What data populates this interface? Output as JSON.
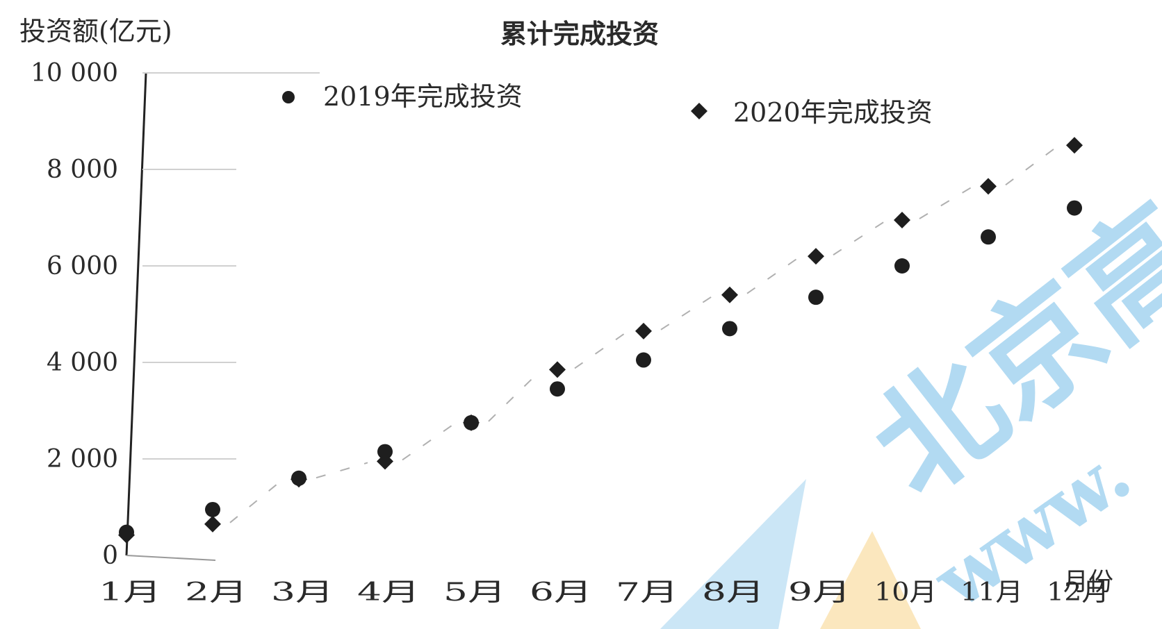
{
  "chart_data": {
    "type": "scatter",
    "title": "累计完成投资",
    "ylabel": "投资额(亿元)",
    "xlabel": "月份",
    "categories": [
      "1月",
      "2月",
      "3月",
      "4月",
      "5月",
      "6月",
      "7月",
      "8月",
      "9月",
      "10月",
      "11月",
      "12月"
    ],
    "yticks": [
      "0",
      "2 000",
      "4 000",
      "6 000",
      "8 000",
      "10 000"
    ],
    "ylim": [
      0,
      10000
    ],
    "legend_position": "top",
    "series": [
      {
        "name": "2019年完成投资",
        "marker": "circle",
        "color": "#1e1e1e",
        "values": [
          480,
          950,
          1600,
          2150,
          2750,
          3450,
          4050,
          4700,
          5350,
          6000,
          6600,
          7200
        ]
      },
      {
        "name": "2020年完成投资",
        "marker": "diamond",
        "color": "#1e1e1e",
        "values": [
          420,
          650,
          1580,
          1950,
          2750,
          3850,
          4650,
          5400,
          6200,
          6950,
          7650,
          8500
        ]
      }
    ],
    "watermark": {
      "text": "北京高",
      "url_text": "www.",
      "color": "#7fc4ea",
      "accent": "#f6c76a"
    }
  }
}
